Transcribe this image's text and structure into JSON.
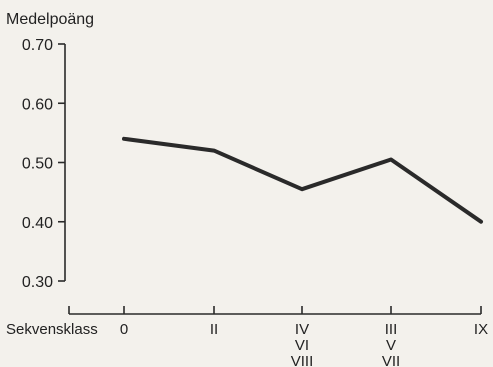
{
  "chart_data": {
    "type": "line",
    "title": "",
    "ylabel": "Medelpoäng",
    "xlabel": "Sekvensklass",
    "ylim": [
      0.3,
      0.7
    ],
    "yticks": [
      "0.70",
      "0.60",
      "0.50",
      "0.40",
      "0.30"
    ],
    "categories": [
      {
        "lines": [
          "0"
        ]
      },
      {
        "lines": [
          "II"
        ]
      },
      {
        "lines": [
          "IV",
          "VI",
          "VIII"
        ]
      },
      {
        "lines": [
          "III",
          "V",
          "VII"
        ]
      },
      {
        "lines": [
          "IX"
        ]
      }
    ],
    "series": [
      {
        "values": [
          0.54,
          0.52,
          0.455,
          0.505,
          0.4
        ]
      }
    ],
    "grid": false,
    "legend": "none",
    "line_color": "#2a2a2a"
  }
}
